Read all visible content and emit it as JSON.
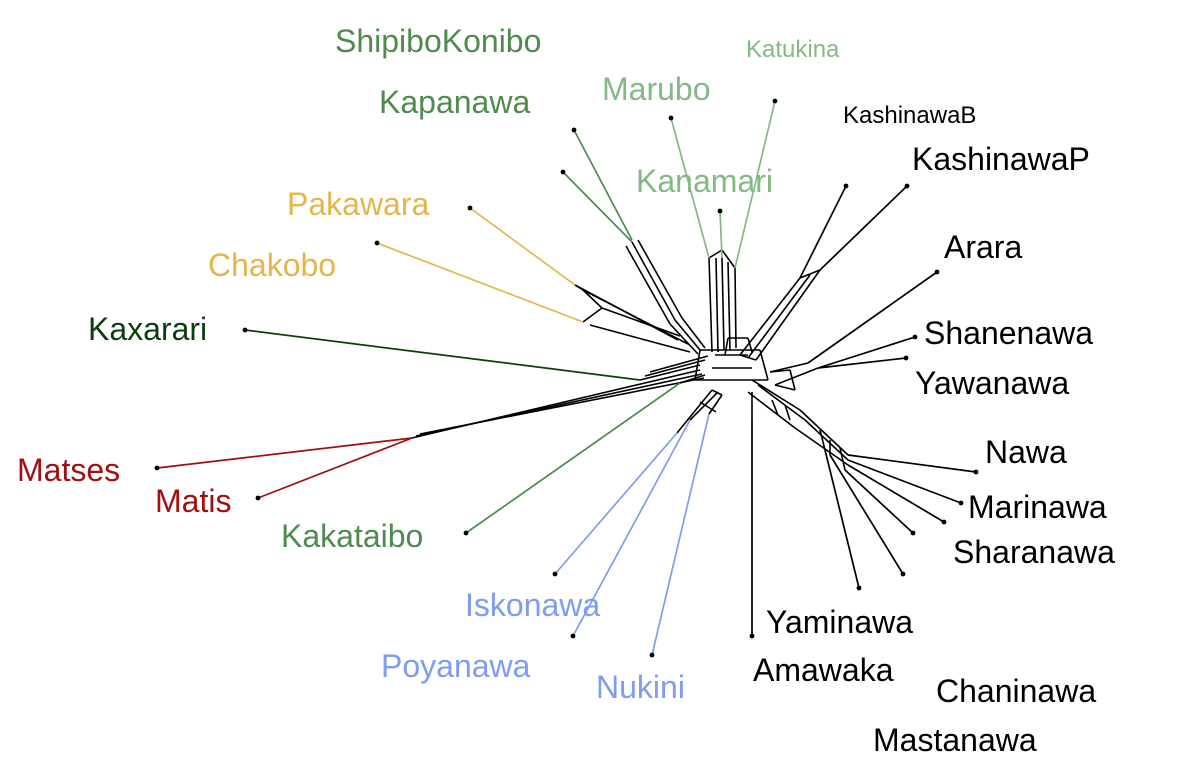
{
  "network": {
    "taxa": [
      {
        "id": "shipibokonibo",
        "label": "ShipiboKonibo",
        "color": "#4f8a4f"
      },
      {
        "id": "kapanawa",
        "label": "Kapanawa",
        "color": "#4f8a4f"
      },
      {
        "id": "pakawara",
        "label": "Pakawara",
        "color": "#e3b54a"
      },
      {
        "id": "chakobo",
        "label": "Chakobo",
        "color": "#e3b54a"
      },
      {
        "id": "kaxarari",
        "label": "Kaxarari",
        "color": "#0d3d0d"
      },
      {
        "id": "matses",
        "label": "Matses",
        "color": "#a01010"
      },
      {
        "id": "matis",
        "label": "Matis",
        "color": "#a01010"
      },
      {
        "id": "kakataibo",
        "label": "Kakataibo",
        "color": "#4f8a4f"
      },
      {
        "id": "iskonawa",
        "label": "Iskonawa",
        "color": "#7f9cf0"
      },
      {
        "id": "poyanawa",
        "label": "Poyanawa",
        "color": "#7f9cf0"
      },
      {
        "id": "nukini",
        "label": "Nukini",
        "color": "#7f9cf0"
      },
      {
        "id": "marubo",
        "label": "Marubo",
        "color": "#84b884"
      },
      {
        "id": "katukina",
        "label": "Katukina",
        "color": "#84b884"
      },
      {
        "id": "kanamari",
        "label": "Kanamari",
        "color": "#84b884"
      },
      {
        "id": "kashinawab",
        "label": "KashinawaB",
        "color": "#000000"
      },
      {
        "id": "kashinawap",
        "label": "KashinawaP",
        "color": "#000000"
      },
      {
        "id": "arara",
        "label": "Arara",
        "color": "#000000"
      },
      {
        "id": "shanenawa",
        "label": "Shanenawa",
        "color": "#000000"
      },
      {
        "id": "yawanawa",
        "label": "Yawanawa",
        "color": "#000000"
      },
      {
        "id": "nawa",
        "label": "Nawa",
        "color": "#000000"
      },
      {
        "id": "marinawa",
        "label": "Marinawa",
        "color": "#000000"
      },
      {
        "id": "sharanawa",
        "label": "Sharanawa",
        "color": "#000000"
      },
      {
        "id": "yaminawa",
        "label": "Yaminawa",
        "color": "#000000"
      },
      {
        "id": "amawaka",
        "label": "Amawaka",
        "color": "#000000"
      },
      {
        "id": "chaninawa",
        "label": "Chaninawa",
        "color": "#000000"
      },
      {
        "id": "mastanawa",
        "label": "Mastanawa",
        "color": "#000000"
      }
    ]
  }
}
